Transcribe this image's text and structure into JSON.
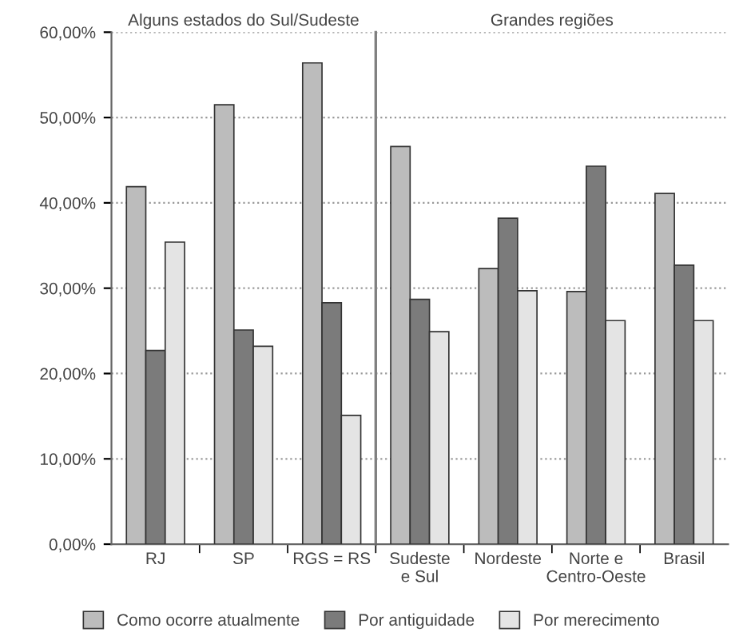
{
  "chart_data": [
    {
      "type": "bar",
      "title": "Alguns estados do Sul/Sudeste",
      "categories": [
        "RJ",
        "SP",
        "RGS = RS"
      ],
      "series": [
        {
          "name": "Como ocorre atualmente",
          "color": "#bcbcbc",
          "values": [
            41.9,
            51.5,
            56.4
          ]
        },
        {
          "name": "Por antiguidade",
          "color": "#7b7b7b",
          "values": [
            22.7,
            25.1,
            28.3
          ]
        },
        {
          "name": "Por merecimento",
          "color": "#e4e4e4",
          "values": [
            35.4,
            23.2,
            15.1
          ]
        }
      ],
      "ylim": [
        0,
        60
      ],
      "yticks": [
        {
          "value": 0,
          "label": "0,00%"
        },
        {
          "value": 10,
          "label": "10,00%"
        },
        {
          "value": 20,
          "label": "20,00%"
        },
        {
          "value": 30,
          "label": "30,00%"
        },
        {
          "value": 40,
          "label": "40,00%"
        },
        {
          "value": 50,
          "label": "50,00%"
        },
        {
          "value": 60,
          "label": "60,00%"
        }
      ],
      "grid": "y",
      "legend": "bottom"
    },
    {
      "type": "bar",
      "title": "Grandes regiões",
      "categories": [
        "Sudeste\ne Sul",
        "Nordeste",
        "Norte e\nCentro-Oeste",
        "Brasil"
      ],
      "series": [
        {
          "color": "#bcbcbc",
          "values": [
            46.6,
            32.3,
            29.6,
            41.1
          ]
        },
        {
          "color": "#7b7b7b",
          "values": [
            28.7,
            38.2,
            44.3,
            32.7
          ]
        },
        {
          "color": "#e4e4e4",
          "values": [
            24.9,
            29.7,
            26.2,
            26.2
          ]
        }
      ],
      "ylim": [
        0,
        60
      ],
      "yticks": [
        0,
        10,
        20,
        30,
        40,
        50,
        60
      ],
      "tick_labels": "x",
      "grid": "y"
    }
  ]
}
